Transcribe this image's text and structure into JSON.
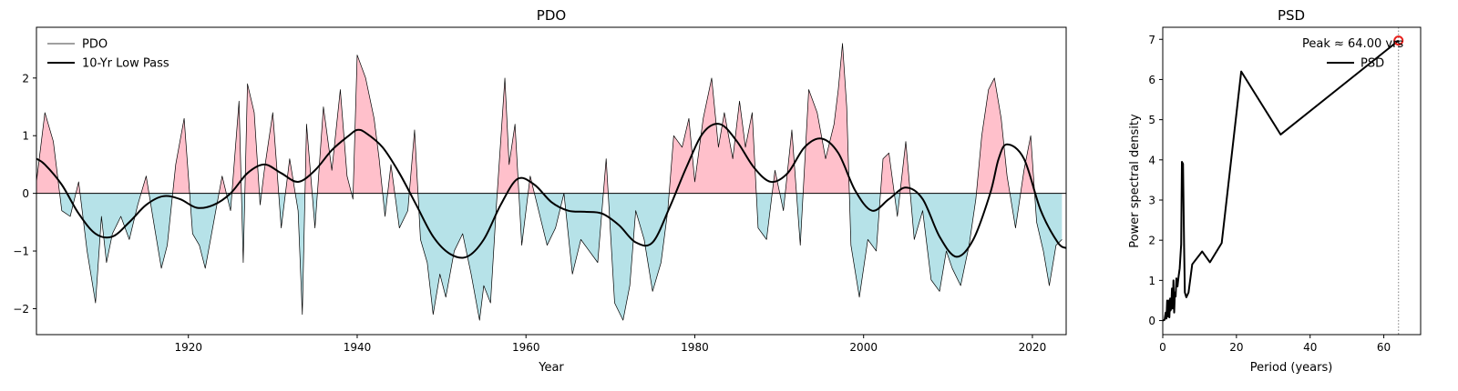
{
  "chart_data": [
    {
      "type": "area",
      "title": "PDO",
      "xlabel": "Year",
      "ylabel": "",
      "xlim": [
        1902,
        2024
      ],
      "ylim": [
        -2.45,
        2.88
      ],
      "xticks": [
        1920,
        1940,
        1960,
        1980,
        2000,
        2020
      ],
      "yticks": [
        -2,
        -1,
        0,
        1,
        2
      ],
      "legend": {
        "location": "upper-left",
        "entries": [
          "PDO",
          "10-Yr Low Pass"
        ]
      },
      "colors": {
        "positive_fill": "#ffc0cb",
        "negative_fill": "#b6e2e8",
        "line": "#000000",
        "zero_line": "#000000"
      },
      "series": [
        {
          "name": "PDO",
          "x": [
            1902.0,
            1903.0,
            1904.0,
            1905.0,
            1906.0,
            1907.0,
            1908.0,
            1909.0,
            1909.7,
            1910.3,
            1911.0,
            1912.0,
            1913.0,
            1914.0,
            1915.0,
            1916.0,
            1916.8,
            1917.5,
            1918.5,
            1919.5,
            1920.5,
            1921.3,
            1922.0,
            1923.0,
            1924.0,
            1925.0,
            1926.0,
            1926.5,
            1927.0,
            1927.8,
            1928.5,
            1929.0,
            1930.0,
            1931.0,
            1932.0,
            1933.0,
            1933.5,
            1934.0,
            1935.0,
            1936.0,
            1937.0,
            1938.0,
            1938.8,
            1939.5,
            1940.0,
            1941.0,
            1942.0,
            1942.6,
            1943.3,
            1944.0,
            1945.0,
            1946.0,
            1946.8,
            1947.5,
            1948.3,
            1949.0,
            1949.8,
            1950.5,
            1951.5,
            1952.5,
            1953.5,
            1954.5,
            1955.0,
            1955.8,
            1956.5,
            1957.5,
            1958.0,
            1958.7,
            1959.5,
            1960.5,
            1961.5,
            1962.5,
            1963.5,
            1964.5,
            1965.5,
            1966.5,
            1967.5,
            1968.5,
            1969.5,
            1970.5,
            1971.5,
            1972.3,
            1973.0,
            1974.0,
            1975.0,
            1976.0,
            1976.8,
            1977.5,
            1978.5,
            1979.3,
            1980.0,
            1981.0,
            1982.0,
            1982.8,
            1983.5,
            1984.5,
            1985.3,
            1986.0,
            1986.8,
            1987.5,
            1988.5,
            1989.5,
            1990.5,
            1991.5,
            1992.5,
            1993.5,
            1994.5,
            1995.5,
            1996.5,
            1997.0,
            1997.5,
            1998.0,
            1998.5,
            1999.5,
            2000.5,
            2001.5,
            2002.3,
            2003.0,
            2004.0,
            2005.0,
            2006.0,
            2007.0,
            2008.0,
            2009.0,
            2009.8,
            2010.5,
            2011.5,
            2012.5,
            2013.3,
            2014.0,
            2014.8,
            2015.5,
            2016.3,
            2017.0,
            2018.0,
            2019.0,
            2019.8,
            2020.5,
            2021.3,
            2022.0,
            2022.8,
            2023.5
          ],
          "y": [
            0.2,
            1.4,
            0.9,
            -0.3,
            -0.4,
            0.2,
            -1.0,
            -1.9,
            -0.4,
            -1.2,
            -0.7,
            -0.4,
            -0.8,
            -0.2,
            0.3,
            -0.6,
            -1.3,
            -0.9,
            0.5,
            1.3,
            -0.7,
            -0.9,
            -1.3,
            -0.5,
            0.3,
            -0.3,
            1.6,
            -1.2,
            1.9,
            1.4,
            -0.2,
            0.4,
            1.4,
            -0.6,
            0.6,
            -0.3,
            -2.1,
            1.2,
            -0.6,
            1.5,
            0.4,
            1.8,
            0.3,
            -0.1,
            2.4,
            2.0,
            1.3,
            0.6,
            -0.4,
            0.5,
            -0.6,
            -0.3,
            1.1,
            -0.8,
            -1.2,
            -2.1,
            -1.4,
            -1.8,
            -1.0,
            -0.7,
            -1.4,
            -2.2,
            -1.6,
            -1.9,
            -0.2,
            2.0,
            0.5,
            1.2,
            -0.9,
            0.3,
            -0.3,
            -0.9,
            -0.6,
            0.0,
            -1.4,
            -0.8,
            -1.0,
            -1.2,
            0.6,
            -1.9,
            -2.2,
            -1.6,
            -0.3,
            -0.8,
            -1.7,
            -1.2,
            -0.3,
            1.0,
            0.8,
            1.3,
            0.2,
            1.3,
            2.0,
            0.8,
            1.4,
            0.6,
            1.6,
            0.8,
            1.4,
            -0.6,
            -0.8,
            0.4,
            -0.3,
            1.1,
            -0.9,
            1.8,
            1.4,
            0.6,
            1.2,
            1.8,
            2.6,
            1.5,
            -0.9,
            -1.8,
            -0.8,
            -1.0,
            0.6,
            0.7,
            -0.4,
            0.9,
            -0.8,
            -0.3,
            -1.5,
            -1.7,
            -1.0,
            -1.3,
            -1.6,
            -0.9,
            -0.1,
            1.0,
            1.8,
            2.0,
            1.3,
            0.3,
            -0.6,
            0.4,
            1.0,
            -0.5,
            -1.0,
            -1.6,
            -0.9,
            -0.8
          ]
        },
        {
          "name": "10-Yr Low Pass",
          "x": [
            1902,
            1903,
            1905,
            1907,
            1909,
            1911,
            1913,
            1915,
            1917,
            1919,
            1921,
            1923,
            1925,
            1927,
            1929,
            1931,
            1933,
            1935,
            1937,
            1939,
            1940,
            1941,
            1943,
            1945,
            1947,
            1949,
            1951,
            1953,
            1955,
            1957,
            1959,
            1961,
            1963,
            1965,
            1967,
            1969,
            1971,
            1973,
            1975,
            1977,
            1979,
            1981,
            1983,
            1985,
            1987,
            1989,
            1991,
            1993,
            1995,
            1997,
            1999,
            2001,
            2003,
            2005,
            2007,
            2009,
            2011,
            2013,
            2015,
            2016,
            2017,
            2019,
            2021,
            2023,
            2024
          ],
          "y": [
            0.6,
            0.5,
            0.15,
            -0.35,
            -0.7,
            -0.75,
            -0.5,
            -0.2,
            -0.05,
            -0.1,
            -0.25,
            -0.2,
            0.0,
            0.35,
            0.5,
            0.35,
            0.2,
            0.4,
            0.75,
            1.0,
            1.1,
            1.05,
            0.8,
            0.35,
            -0.2,
            -0.75,
            -1.05,
            -1.1,
            -0.8,
            -0.2,
            0.25,
            0.15,
            -0.15,
            -0.3,
            -0.32,
            -0.35,
            -0.55,
            -0.85,
            -0.85,
            -0.25,
            0.45,
            1.05,
            1.2,
            0.9,
            0.45,
            0.2,
            0.35,
            0.8,
            0.95,
            0.7,
            0.05,
            -0.3,
            -0.1,
            0.1,
            -0.1,
            -0.75,
            -1.1,
            -0.8,
            0.0,
            0.6,
            0.85,
            0.6,
            -0.3,
            -0.85,
            -0.95
          ]
        }
      ]
    },
    {
      "type": "line",
      "title": "PSD",
      "xlabel": "Period (years)",
      "ylabel": "Power spectral density",
      "xlim": [
        0,
        70
      ],
      "ylim": [
        -0.35,
        7.3
      ],
      "xticks": [
        0,
        20,
        40,
        60
      ],
      "yticks": [
        0,
        1,
        2,
        3,
        4,
        5,
        6,
        7
      ],
      "legend": {
        "location": "upper-right",
        "entries": [
          "PSD"
        ]
      },
      "annotation": "Peak ≈ 64.00 yrs",
      "peak": {
        "x": 64.0,
        "y": 6.97
      },
      "colors": {
        "line": "#000000",
        "peak_marker": "#e8201c",
        "peak_vline": "#808080"
      },
      "series": [
        {
          "name": "PSD",
          "x": [
            0.0,
            0.5,
            0.8,
            1.0,
            1.2,
            1.4,
            1.6,
            1.8,
            2.0,
            2.1,
            2.3,
            2.5,
            2.7,
            2.9,
            3.1,
            3.3,
            3.5,
            3.7,
            4.0,
            4.3,
            4.6,
            5.0,
            5.2,
            5.5,
            5.8,
            6.0,
            6.4,
            7.0,
            8.0,
            10.7,
            12.8,
            16.0,
            21.3,
            32.0,
            64.0
          ],
          "y": [
            0.0,
            0.02,
            0.2,
            0.05,
            0.5,
            0.1,
            0.5,
            0.08,
            0.55,
            0.25,
            0.3,
            0.8,
            0.3,
            1.0,
            0.2,
            0.7,
            0.6,
            1.05,
            0.85,
            1.1,
            1.3,
            1.9,
            3.95,
            3.9,
            1.8,
            0.7,
            0.58,
            0.7,
            1.4,
            1.72,
            1.45,
            1.93,
            6.2,
            4.63,
            6.97
          ]
        }
      ]
    }
  ]
}
